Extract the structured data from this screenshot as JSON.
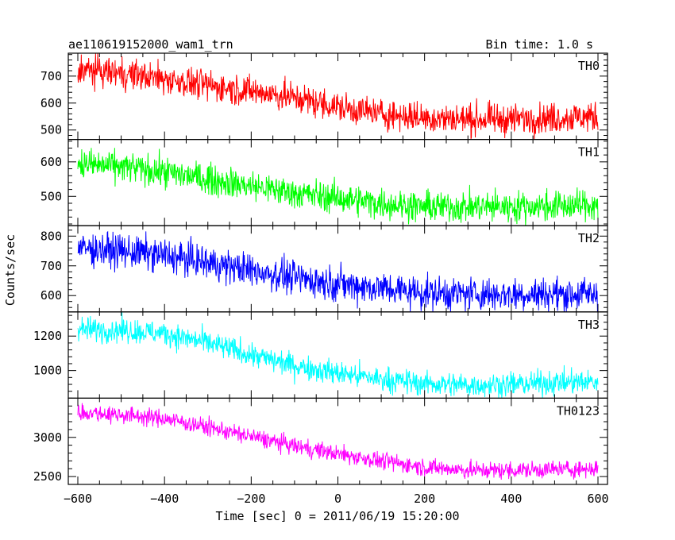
{
  "header": {
    "title": "ae110619152000_wam1_trn",
    "bin_time": "Bin time: 1.0 s"
  },
  "chart_data": {
    "type": "line",
    "xlabel": "Time [sec] 0 = 2011/06/19 15:20:00",
    "ylabel": "Counts/sec",
    "xlim": [
      -622,
      622
    ],
    "x_ticks": [
      -600,
      -400,
      -200,
      0,
      200,
      400,
      600
    ],
    "grid": false,
    "legend": "none",
    "panels": [
      {
        "name": "TH0",
        "color": "#ff0000",
        "ylim": [
          465,
          785
        ],
        "y_ticks": [
          500,
          600,
          700
        ],
        "x": [
          -600,
          -500,
          -400,
          -300,
          -200,
          -100,
          0,
          100,
          200,
          300,
          400,
          500,
          600
        ],
        "y": [
          725,
          710,
          690,
          665,
          645,
          620,
          585,
          560,
          545,
          540,
          540,
          545,
          550
        ],
        "noise": 28
      },
      {
        "name": "TH1",
        "color": "#00ff00",
        "ylim": [
          415,
          665
        ],
        "y_ticks": [
          500,
          600
        ],
        "x": [
          -600,
          -500,
          -400,
          -300,
          -200,
          -100,
          0,
          100,
          200,
          300,
          400,
          500,
          600
        ],
        "y": [
          595,
          585,
          570,
          550,
          530,
          510,
          495,
          480,
          470,
          470,
          470,
          472,
          475
        ],
        "noise": 22
      },
      {
        "name": "TH2",
        "color": "#0000ff",
        "ylim": [
          545,
          835
        ],
        "y_ticks": [
          600,
          700,
          800
        ],
        "x": [
          -600,
          -500,
          -400,
          -300,
          -200,
          -100,
          0,
          100,
          200,
          300,
          400,
          500,
          600
        ],
        "y": [
          760,
          750,
          735,
          710,
          685,
          660,
          640,
          625,
          610,
          605,
          605,
          605,
          605
        ],
        "noise": 28
      },
      {
        "name": "TH3",
        "color": "#00ffff",
        "ylim": [
          840,
          1340
        ],
        "y_ticks": [
          1000,
          1200
        ],
        "x": [
          -600,
          -500,
          -400,
          -300,
          -200,
          -100,
          0,
          100,
          200,
          300,
          400,
          500,
          600
        ],
        "y": [
          1240,
          1235,
          1215,
          1160,
          1090,
          1030,
          985,
          950,
          925,
          915,
          920,
          930,
          935
        ],
        "noise": 35
      },
      {
        "name": "TH0123",
        "color": "#ff00ff",
        "ylim": [
          2400,
          3500
        ],
        "y_ticks": [
          2500,
          3000
        ],
        "x": [
          -600,
          -500,
          -400,
          -300,
          -200,
          -100,
          0,
          100,
          200,
          300,
          400,
          500,
          600
        ],
        "y": [
          3320,
          3290,
          3240,
          3130,
          3010,
          2890,
          2790,
          2700,
          2620,
          2580,
          2580,
          2590,
          2600
        ],
        "noise": 55
      }
    ]
  }
}
